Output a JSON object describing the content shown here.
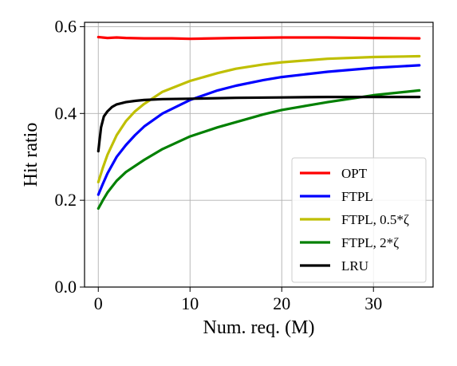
{
  "chart_data": {
    "type": "line",
    "xlabel": "Num. req. (M)",
    "ylabel": "Hit ratio",
    "xlim": [
      -1.5,
      36.5
    ],
    "ylim": [
      0.0,
      0.61
    ],
    "xticks": [
      0,
      10,
      20,
      30
    ],
    "yticks": [
      0.0,
      0.2,
      0.4,
      0.6
    ],
    "xtick_labels": [
      "0",
      "10",
      "20",
      "30"
    ],
    "ytick_labels": [
      "0.0",
      "0.2",
      "0.4",
      "0.6"
    ],
    "grid": true,
    "legend_placement": "lower-right",
    "series": [
      {
        "name": "OPT",
        "color": "#ff0000",
        "x": [
          0,
          1,
          2,
          3,
          5,
          8,
          10,
          15,
          20,
          25,
          30,
          35
        ],
        "y": [
          0.576,
          0.574,
          0.575,
          0.574,
          0.573,
          0.573,
          0.572,
          0.574,
          0.575,
          0.575,
          0.574,
          0.573
        ]
      },
      {
        "name": "FTPL",
        "color": "#0000ff",
        "x": [
          0,
          0.5,
          1,
          2,
          3,
          4,
          5,
          7,
          10,
          13,
          15,
          18,
          20,
          25,
          30,
          35
        ],
        "y": [
          0.213,
          0.238,
          0.262,
          0.3,
          0.327,
          0.35,
          0.37,
          0.4,
          0.431,
          0.453,
          0.464,
          0.477,
          0.484,
          0.496,
          0.505,
          0.511
        ]
      },
      {
        "name": "FTPL, 0.5*ζ",
        "color": "#bfbf00",
        "x": [
          0,
          0.5,
          1,
          2,
          3,
          4,
          5,
          7,
          10,
          13,
          15,
          18,
          20,
          25,
          30,
          35
        ],
        "y": [
          0.242,
          0.275,
          0.305,
          0.35,
          0.382,
          0.405,
          0.422,
          0.45,
          0.475,
          0.493,
          0.503,
          0.513,
          0.518,
          0.526,
          0.53,
          0.532
        ]
      },
      {
        "name": "FTPL, 2*ζ",
        "color": "#008000",
        "x": [
          0,
          0.5,
          1,
          2,
          3,
          5,
          7,
          10,
          13,
          15,
          18,
          20,
          25,
          30,
          35
        ],
        "y": [
          0.181,
          0.2,
          0.218,
          0.245,
          0.265,
          0.293,
          0.318,
          0.347,
          0.368,
          0.38,
          0.398,
          0.408,
          0.426,
          0.442,
          0.453
        ]
      },
      {
        "name": "LRU",
        "color": "#000000",
        "x": [
          0,
          0.3,
          0.6,
          1,
          1.5,
          2,
          3,
          4,
          5,
          7,
          10,
          15,
          20,
          25,
          30,
          35
        ],
        "y": [
          0.313,
          0.368,
          0.393,
          0.405,
          0.415,
          0.421,
          0.426,
          0.429,
          0.431,
          0.433,
          0.434,
          0.436,
          0.437,
          0.438,
          0.438,
          0.438
        ]
      }
    ]
  }
}
